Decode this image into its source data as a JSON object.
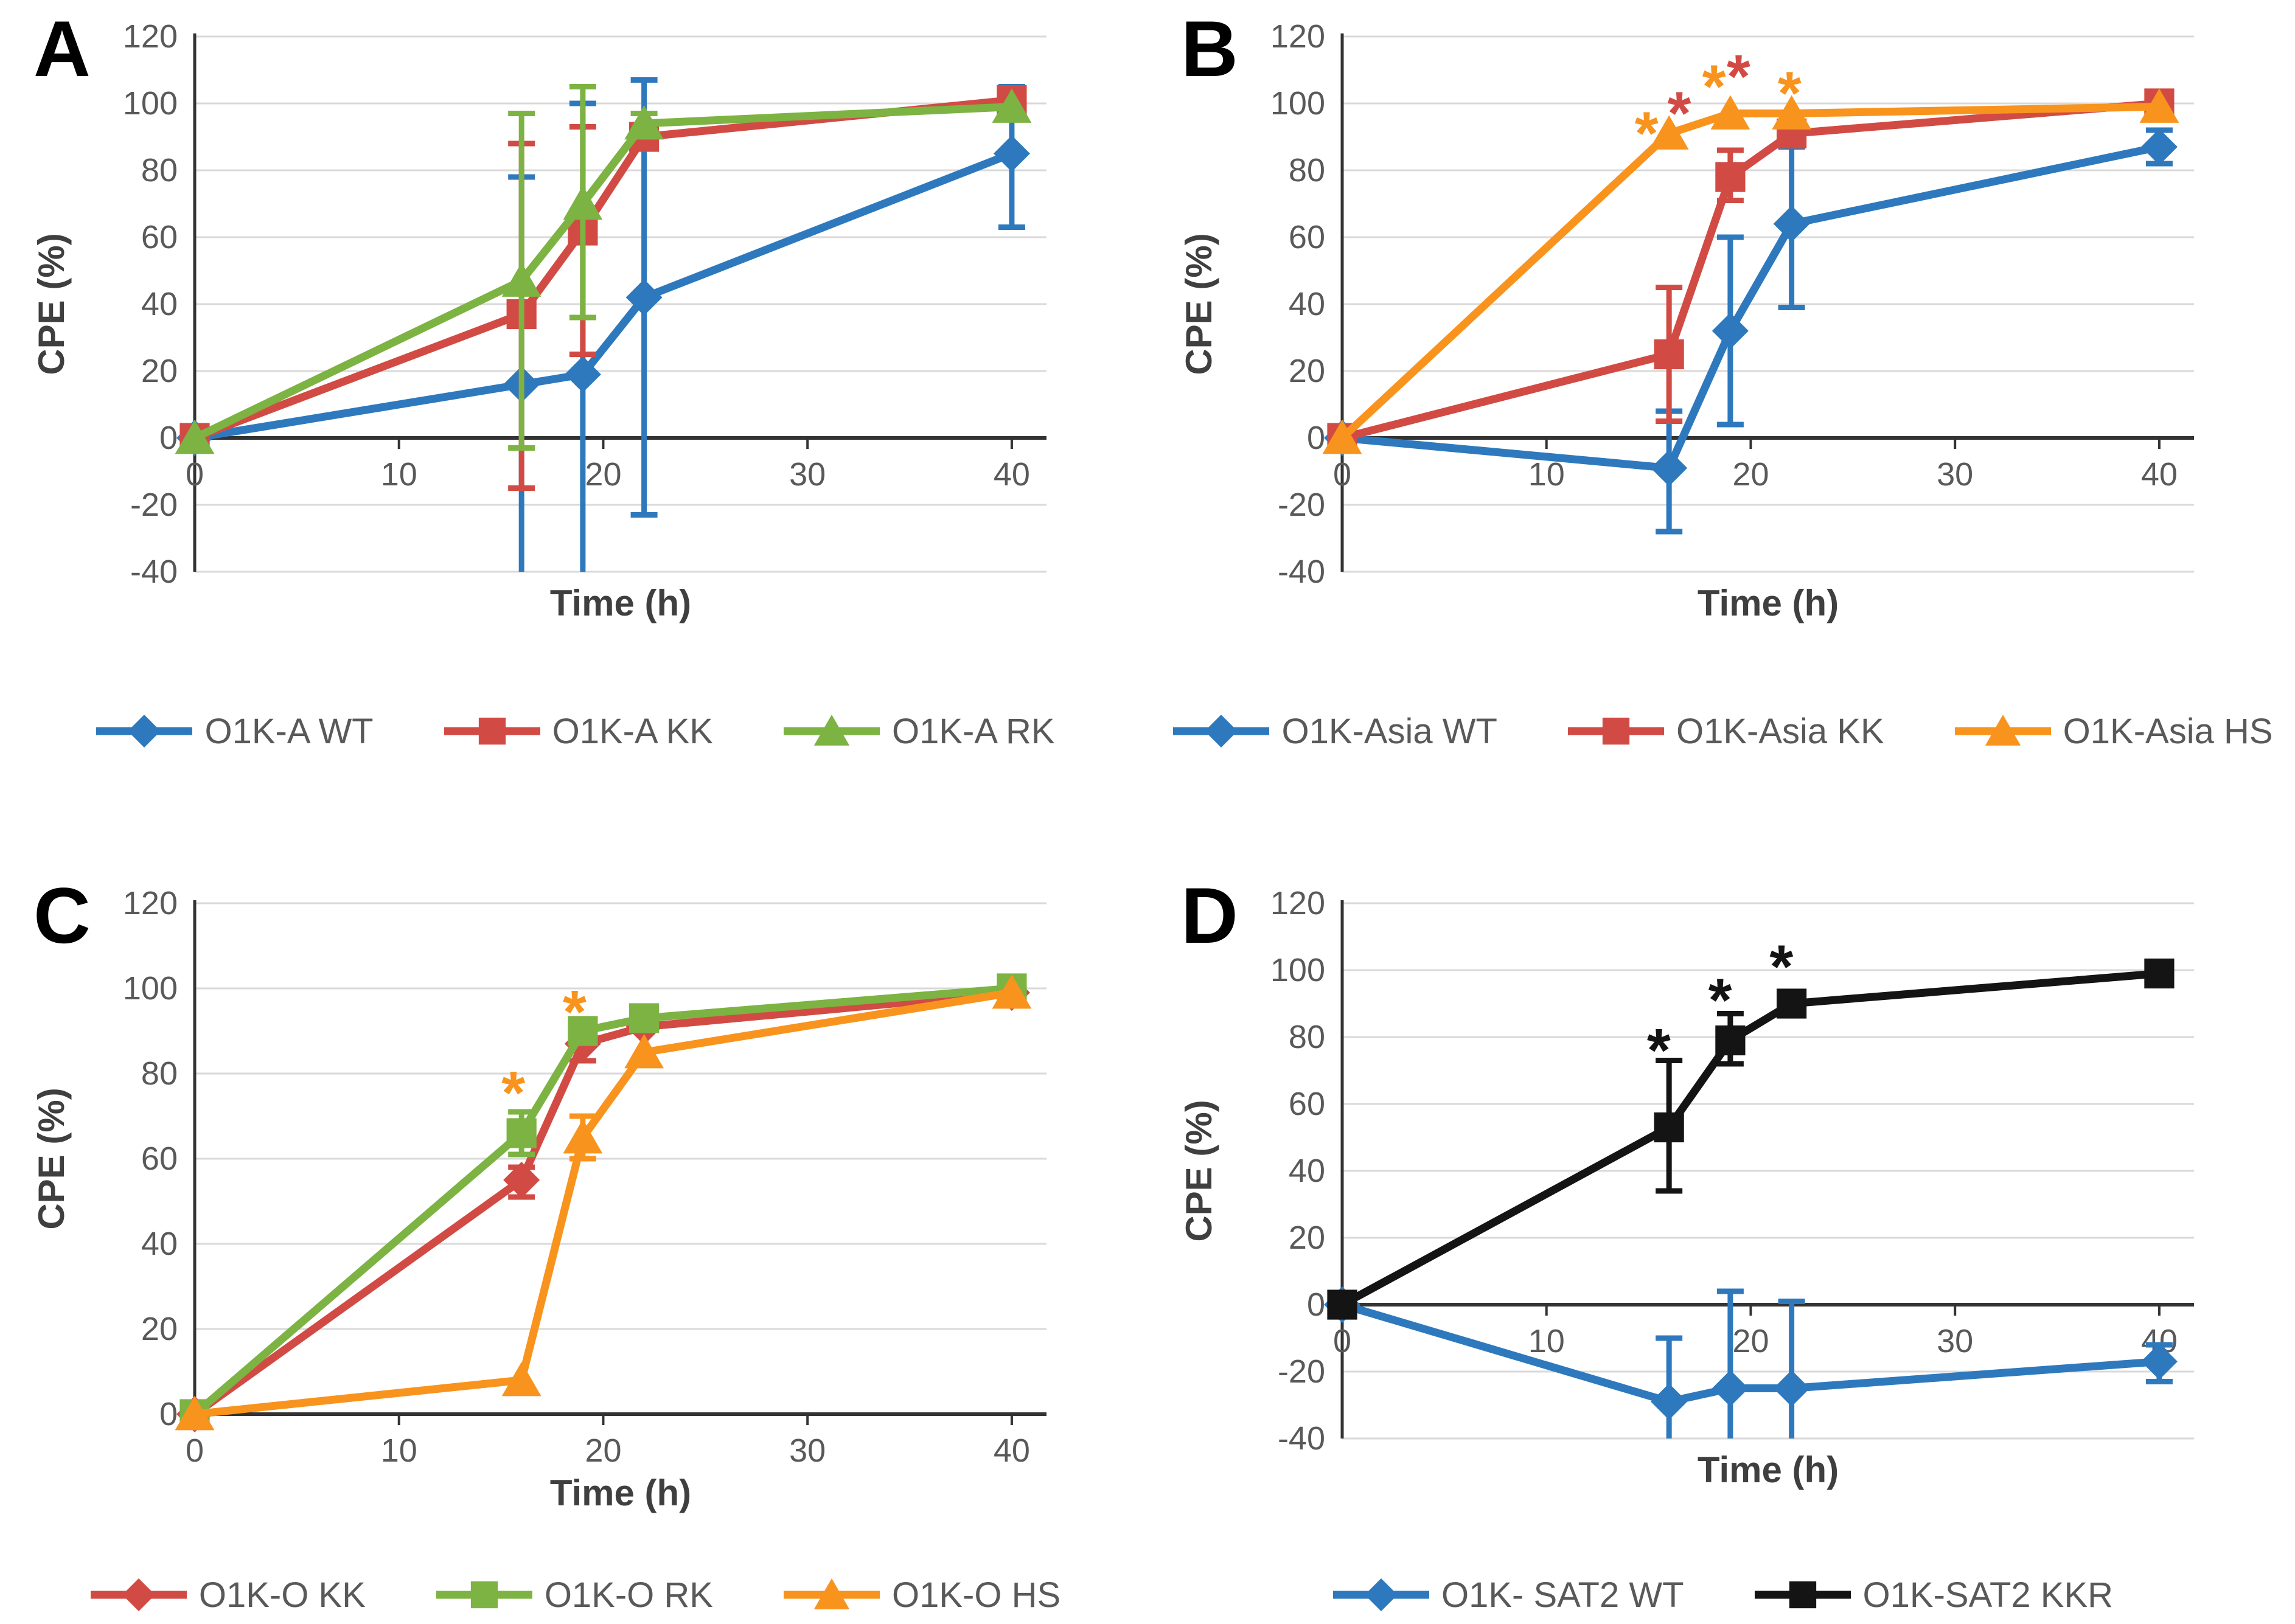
{
  "figure": {
    "background": "#FFFFFF",
    "panel_labels": [
      "A",
      "B",
      "C",
      "D"
    ]
  },
  "palette": {
    "blue": "#2E79BD",
    "red": "#D14B44",
    "green": "#7CB342",
    "orange": "#F8941D",
    "black": "#141414",
    "grid": "#D9D9D9",
    "axis": "#333333",
    "tick_text": "#595959",
    "label_text": "#3F3F3F"
  },
  "chart_data": [
    {
      "type": "line",
      "panel_label": "A",
      "xlabel": "Time (h)",
      "ylabel": "CPE (%)",
      "xlim": [
        0,
        41.7
      ],
      "ylim": [
        -40,
        120
      ],
      "xticks": [
        0,
        10,
        20,
        30,
        40
      ],
      "yticks": [
        120,
        100,
        80,
        60,
        40,
        20,
        0,
        -20,
        -40
      ],
      "grid": "horizontal",
      "legend_position": "bottom",
      "x": [
        0,
        16,
        19,
        22,
        40
      ],
      "series": [
        {
          "name": "O1K-A WT",
          "color": "#2E79BD",
          "marker": "diamond",
          "values": [
            0,
            16,
            19,
            42,
            85
          ],
          "error_bars": [
            {
              "x": 16,
              "low": -40,
              "high": 78
            },
            {
              "x": 19,
              "low": -40,
              "high": 100
            },
            {
              "x": 22,
              "low": -23,
              "high": 107
            },
            {
              "x": 40,
              "low": 63,
              "high": 105
            }
          ]
        },
        {
          "name": "O1K-A KK",
          "color": "#D14B44",
          "marker": "square",
          "values": [
            0,
            37,
            62,
            90,
            101
          ],
          "error_bars": [
            {
              "x": 16,
              "low": -15,
              "high": 88
            },
            {
              "x": 19,
              "low": 25,
              "high": 93
            }
          ]
        },
        {
          "name": "O1K-A RK",
          "color": "#7CB342",
          "marker": "triangle",
          "values": [
            0,
            47,
            70,
            94,
            99
          ],
          "error_bars": [
            {
              "x": 16,
              "low": -3,
              "high": 97
            },
            {
              "x": 19,
              "low": 36,
              "high": 105
            },
            {
              "x": 22,
              "low": 90,
              "high": 97
            }
          ]
        }
      ],
      "annotations": []
    },
    {
      "type": "line",
      "panel_label": "B",
      "xlabel": "Time (h)",
      "ylabel": "CPE (%)",
      "xlim": [
        0,
        41.7
      ],
      "ylim": [
        -40,
        120
      ],
      "xticks": [
        0,
        10,
        20,
        30,
        40
      ],
      "yticks": [
        120,
        100,
        80,
        60,
        40,
        20,
        0,
        -20,
        -40
      ],
      "grid": "horizontal",
      "legend_position": "bottom",
      "x": [
        0,
        16,
        19,
        22,
        40
      ],
      "series": [
        {
          "name": "O1K-Asia WT",
          "color": "#2E79BD",
          "marker": "diamond",
          "values": [
            0,
            -9,
            32,
            64,
            87
          ],
          "error_bars": [
            {
              "x": 16,
              "low": -28,
              "high": 8
            },
            {
              "x": 19,
              "low": 4,
              "high": 60
            },
            {
              "x": 22,
              "low": 39,
              "high": 87
            },
            {
              "x": 40,
              "low": 82,
              "high": 92
            }
          ]
        },
        {
          "name": "O1K-Asia KK",
          "color": "#D14B44",
          "marker": "square",
          "values": [
            0,
            25,
            78,
            91,
            100
          ],
          "error_bars": [
            {
              "x": 16,
              "low": 5,
              "high": 45
            },
            {
              "x": 19,
              "low": 71,
              "high": 86
            }
          ]
        },
        {
          "name": "O1K-Asia HS",
          "color": "#F8941D",
          "marker": "triangle",
          "values": [
            0,
            91,
            97,
            97,
            99
          ],
          "error_bars": []
        }
      ],
      "annotations": [
        {
          "x": 14.9,
          "y": 93,
          "text": "*",
          "color": "#F8941D"
        },
        {
          "x": 16.5,
          "y": 99,
          "text": "*",
          "color": "#D14B44"
        },
        {
          "x": 18.2,
          "y": 107,
          "text": "*",
          "color": "#F8941D"
        },
        {
          "x": 19.4,
          "y": 110,
          "text": "*",
          "color": "#D14B44"
        },
        {
          "x": 21.9,
          "y": 105,
          "text": "*",
          "color": "#F8941D"
        }
      ]
    },
    {
      "type": "line",
      "panel_label": "C",
      "xlabel": "Time (h)",
      "ylabel": "CPE (%)",
      "xlim": [
        0,
        41.7
      ],
      "ylim": [
        0,
        120
      ],
      "xticks": [
        0,
        10,
        20,
        30,
        40
      ],
      "yticks": [
        120,
        100,
        80,
        60,
        40,
        20,
        0
      ],
      "grid": "horizontal",
      "legend_position": "bottom",
      "x": [
        0,
        16,
        19,
        22,
        40
      ],
      "series": [
        {
          "name": "O1K-O KK",
          "color": "#D14B44",
          "marker": "diamond",
          "values": [
            0,
            55,
            87,
            91,
            99
          ],
          "error_bars": [
            {
              "x": 16,
              "low": 51,
              "high": 58
            },
            {
              "x": 19,
              "low": 83,
              "high": 90
            }
          ]
        },
        {
          "name": "O1K-O RK",
          "color": "#7CB342",
          "marker": "square",
          "values": [
            0,
            66,
            90,
            93,
            100
          ],
          "error_bars": [
            {
              "x": 16,
              "low": 61,
              "high": 71
            }
          ]
        },
        {
          "name": "O1K-O HS",
          "color": "#F8941D",
          "marker": "triangle",
          "values": [
            0,
            8,
            65,
            85,
            99
          ],
          "error_bars": [
            {
              "x": 19,
              "low": 60,
              "high": 70
            }
          ]
        }
      ],
      "annotations": [
        {
          "x": 15.6,
          "y": 77,
          "text": "*",
          "color": "#F8941D"
        },
        {
          "x": 18.6,
          "y": 96,
          "text": "*",
          "color": "#F8941D"
        }
      ]
    },
    {
      "type": "line",
      "panel_label": "D",
      "xlabel": "Time (h)",
      "ylabel": "CPE (%)",
      "xlim": [
        0,
        41.7
      ],
      "ylim": [
        -40,
        120
      ],
      "xticks": [
        0,
        10,
        20,
        30,
        40
      ],
      "yticks": [
        120,
        100,
        80,
        60,
        40,
        20,
        0,
        -20,
        -40
      ],
      "grid": "horizontal",
      "legend_position": "bottom",
      "x": [
        0,
        16,
        19,
        22,
        40
      ],
      "series": [
        {
          "name": "O1K- SAT2 WT",
          "color": "#2E79BD",
          "marker": "diamond",
          "values": [
            0,
            -29,
            -25,
            -25,
            -17
          ],
          "error_bars": [
            {
              "x": 16,
              "low": -40,
              "high": -10
            },
            {
              "x": 19,
              "low": -40,
              "high": 4
            },
            {
              "x": 22,
              "low": -40,
              "high": 1
            },
            {
              "x": 40,
              "low": -23,
              "high": -12
            }
          ]
        },
        {
          "name": "O1K-SAT2 KKR",
          "color": "#141414",
          "marker": "square",
          "values": [
            0,
            53,
            79,
            90,
            99
          ],
          "error_bars": [
            {
              "x": 16,
              "low": 34,
              "high": 73
            },
            {
              "x": 19,
              "low": 72,
              "high": 87
            }
          ]
        }
      ],
      "annotations": [
        {
          "x": 15.5,
          "y": 78,
          "text": "*",
          "color": "#141414"
        },
        {
          "x": 18.5,
          "y": 93,
          "text": "*",
          "color": "#141414"
        },
        {
          "x": 21.5,
          "y": 103,
          "text": "*",
          "color": "#141414"
        }
      ]
    }
  ]
}
